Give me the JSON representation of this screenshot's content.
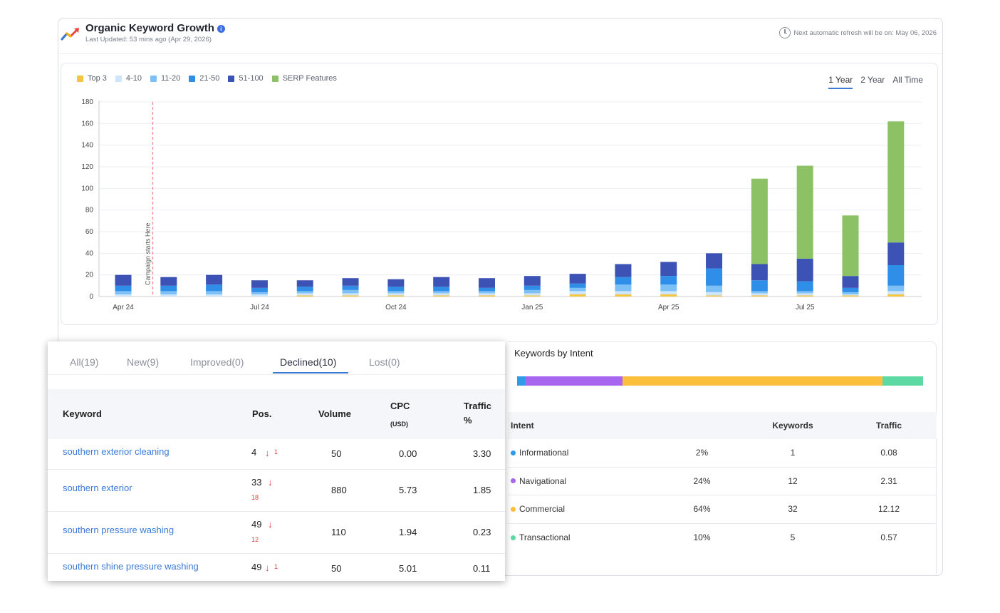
{
  "header": {
    "title": "Organic Keyword Growth",
    "info_glyph": "i",
    "last_updated": "Last Updated: 53 mins ago (Apr 29, 2026)",
    "refresh_note": "Next automatic refresh will be on: May 06, 2026"
  },
  "range_tabs": [
    {
      "label": "1 Year",
      "active": true
    },
    {
      "label": "2 Year",
      "active": false
    },
    {
      "label": "All Time",
      "active": false
    }
  ],
  "chart_data": {
    "type": "bar",
    "stacked": true,
    "series_names": [
      "Top 3",
      "4-10",
      "11-20",
      "21-50",
      "51-100",
      "SERP Features"
    ],
    "colors": [
      "#f4c542",
      "#cfe6fa",
      "#7cc0f5",
      "#2f8fe8",
      "#3c52b5",
      "#8cc265"
    ],
    "ylim": [
      0,
      180
    ],
    "yticks": [
      0,
      20,
      40,
      60,
      80,
      100,
      120,
      140,
      160,
      180
    ],
    "xtick_labels": [
      "Apr 24",
      "Jul 24",
      "Oct 24",
      "Jan 25",
      "Apr 25",
      "Jul 25"
    ],
    "xtick_positions": [
      0,
      3,
      6,
      9,
      12,
      15
    ],
    "grid": true,
    "legend_position": "top-left",
    "annotation": {
      "label": "Campaign starts Here",
      "position": 0.65
    },
    "bars": [
      [
        0,
        2,
        3,
        5,
        10,
        0
      ],
      [
        0,
        2,
        3,
        5,
        8,
        0
      ],
      [
        0,
        2,
        3,
        6,
        9,
        0
      ],
      [
        0,
        2,
        2,
        4,
        7,
        0
      ],
      [
        1,
        2,
        2,
        4,
        6,
        0
      ],
      [
        1,
        2,
        3,
        4,
        7,
        0
      ],
      [
        1,
        2,
        2,
        4,
        7,
        0
      ],
      [
        1,
        2,
        2,
        4,
        9,
        0
      ],
      [
        1,
        2,
        2,
        3,
        9,
        0
      ],
      [
        1,
        2,
        3,
        4,
        9,
        0
      ],
      [
        2,
        3,
        3,
        4,
        9,
        0
      ],
      [
        2,
        3,
        6,
        7,
        12,
        0
      ],
      [
        2,
        3,
        6,
        8,
        13,
        0
      ],
      [
        1,
        3,
        6,
        16,
        14,
        0
      ],
      [
        1,
        2,
        2,
        10,
        15,
        79
      ],
      [
        1,
        2,
        2,
        9,
        21,
        86
      ],
      [
        1,
        1,
        2,
        4,
        11,
        56
      ],
      [
        2,
        3,
        5,
        19,
        21,
        112
      ]
    ]
  },
  "keywords_panel": {
    "tabs": [
      {
        "label": "All(19)",
        "active": false
      },
      {
        "label": "New(9)",
        "active": false
      },
      {
        "label": "Improved(0)",
        "active": false
      },
      {
        "label": "Declined(10)",
        "active": true
      },
      {
        "label": "Lost(0)",
        "active": false
      }
    ],
    "columns": {
      "keyword": "Keyword",
      "pos": "Pos.",
      "volume": "Volume",
      "cpc": "CPC",
      "cpc_unit": "(USD)",
      "traffic": "Traffic",
      "traffic_unit": "%"
    },
    "rows": [
      {
        "keyword": "southern exterior cleaning",
        "pos": "4",
        "change": "1",
        "volume": "50",
        "cpc": "0.00",
        "traffic": "3.30"
      },
      {
        "keyword": "southern exterior",
        "pos": "33",
        "change": "18",
        "volume": "880",
        "cpc": "5.73",
        "traffic": "1.85"
      },
      {
        "keyword": "southern pressure washing",
        "pos": "49",
        "change": "12",
        "volume": "110",
        "cpc": "1.94",
        "traffic": "0.23"
      },
      {
        "keyword": "southern shine pressure washing",
        "pos": "49",
        "change": "1",
        "volume": "50",
        "cpc": "5.01",
        "traffic": "0.11"
      }
    ]
  },
  "intent_panel": {
    "title": "Keywords by Intent",
    "bar_segments": [
      {
        "name": "Informational",
        "percent": 2,
        "color": "#2f9be8"
      },
      {
        "name": "Navigational",
        "percent": 24,
        "color": "#a766f0"
      },
      {
        "name": "Commercial",
        "percent": 64,
        "color": "#fbbf3c"
      },
      {
        "name": "Transactional",
        "percent": 10,
        "color": "#5dd9a4"
      }
    ],
    "columns": {
      "intent": "Intent",
      "keywords": "Keywords",
      "traffic": "Traffic"
    },
    "rows": [
      {
        "name": "Informational",
        "pct": "2%",
        "keywords": "1",
        "traffic": "0.08",
        "color": "#2f9be8"
      },
      {
        "name": "Navigational",
        "pct": "24%",
        "keywords": "12",
        "traffic": "2.31",
        "color": "#a766f0"
      },
      {
        "name": "Commercial",
        "pct": "64%",
        "keywords": "32",
        "traffic": "12.12",
        "color": "#fbbf3c"
      },
      {
        "name": "Transactional",
        "pct": "10%",
        "keywords": "5",
        "traffic": "0.57",
        "color": "#5dd9a4"
      }
    ]
  }
}
